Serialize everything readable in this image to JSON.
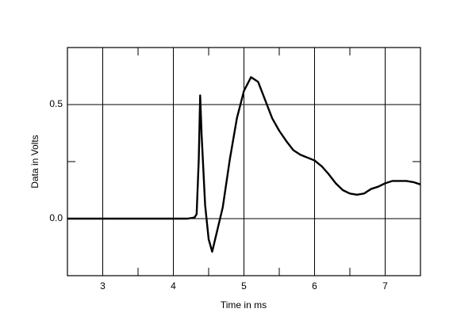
{
  "chart_data": {
    "type": "line",
    "xlabel": "Time in ms",
    "ylabel": "Data in Volts",
    "x": [
      2.5,
      4.0,
      4.2,
      4.3,
      4.33,
      4.36,
      4.38,
      4.4,
      4.45,
      4.5,
      4.55,
      4.6,
      4.7,
      4.8,
      4.9,
      5.0,
      5.1,
      5.2,
      5.3,
      5.4,
      5.5,
      5.6,
      5.7,
      5.8,
      6.0,
      6.1,
      6.2,
      6.3,
      6.4,
      6.5,
      6.6,
      6.7,
      6.8,
      6.9,
      7.0,
      7.1,
      7.2,
      7.3,
      7.4,
      7.5
    ],
    "values": [
      0,
      0,
      0,
      0.005,
      0.02,
      0.26,
      0.54,
      0.37,
      0.06,
      -0.09,
      -0.145,
      -0.08,
      0.05,
      0.26,
      0.44,
      0.56,
      0.62,
      0.6,
      0.52,
      0.44,
      0.385,
      0.34,
      0.3,
      0.28,
      0.255,
      0.23,
      0.195,
      0.155,
      0.125,
      0.11,
      0.105,
      0.11,
      0.13,
      0.14,
      0.155,
      0.165,
      0.165,
      0.165,
      0.16,
      0.15
    ],
    "color": "#000000",
    "xlim": [
      2.5,
      7.5
    ],
    "ylim": [
      -0.25,
      0.75
    ],
    "xticks": [
      3,
      4,
      5,
      6,
      7
    ],
    "yticks": [
      {
        "value": 0,
        "label": "0.0"
      },
      0.5
    ],
    "xticks_minor": [
      3.5,
      4.5,
      5.5,
      6.5
    ],
    "yticks_minor": [
      0.25
    ],
    "grid": true
  }
}
